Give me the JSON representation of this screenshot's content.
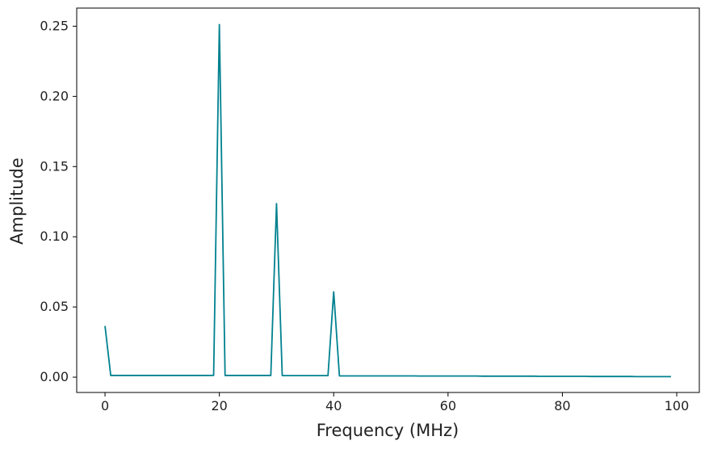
{
  "chart_data": {
    "type": "line",
    "title": "",
    "xlabel": "Frequency (MHz)",
    "ylabel": "Amplitude",
    "xlim": [
      -4.95,
      103.95
    ],
    "ylim": [
      -0.0109,
      0.2629
    ],
    "xticks": [
      0,
      20,
      40,
      60,
      80,
      100
    ],
    "xtick_labels": [
      "0",
      "20",
      "40",
      "60",
      "80",
      "100"
    ],
    "yticks": [
      0.0,
      0.05,
      0.1,
      0.15,
      0.2,
      0.25
    ],
    "ytick_labels": [
      "0.00",
      "0.05",
      "0.10",
      "0.15",
      "0.20",
      "0.25"
    ],
    "grid": false,
    "legend": "none",
    "series": [
      {
        "color": "#00818f",
        "x": [
          0,
          1,
          2,
          3,
          4,
          5,
          6,
          7,
          8,
          9,
          10,
          11,
          12,
          13,
          14,
          15,
          16,
          17,
          18,
          19,
          20,
          21,
          22,
          23,
          24,
          25,
          26,
          27,
          28,
          29,
          30,
          31,
          32,
          33,
          34,
          35,
          36,
          37,
          38,
          39,
          40,
          41,
          42,
          43,
          44,
          45,
          46,
          47,
          48,
          49,
          50,
          51,
          52,
          53,
          54,
          55,
          56,
          57,
          58,
          59,
          60,
          61,
          62,
          63,
          64,
          65,
          66,
          67,
          68,
          69,
          70,
          71,
          72,
          73,
          74,
          75,
          76,
          77,
          78,
          79,
          80,
          81,
          82,
          83,
          84,
          85,
          86,
          87,
          88,
          89,
          90,
          91,
          92,
          93,
          94,
          95,
          96,
          97,
          98,
          99
        ],
        "y": [
          0.0365,
          0.0012,
          0.0012,
          0.0012,
          0.0012,
          0.0012,
          0.0012,
          0.0012,
          0.0012,
          0.0012,
          0.0012,
          0.0012,
          0.0012,
          0.0012,
          0.0012,
          0.0012,
          0.0012,
          0.0012,
          0.0012,
          0.0013,
          0.2512,
          0.0012,
          0.0012,
          0.0012,
          0.0012,
          0.0012,
          0.0012,
          0.0012,
          0.0012,
          0.0012,
          0.1236,
          0.0011,
          0.0011,
          0.0011,
          0.0011,
          0.0011,
          0.0011,
          0.0011,
          0.0011,
          0.0011,
          0.0608,
          0.0009,
          0.0009,
          0.0009,
          0.0009,
          0.0009,
          0.0009,
          0.0009,
          0.0009,
          0.0009,
          0.0009,
          0.0009,
          0.0009,
          0.0009,
          0.0009,
          0.0008,
          0.0008,
          0.0008,
          0.0008,
          0.0008,
          0.0008,
          0.0008,
          0.0008,
          0.0008,
          0.0008,
          0.0008,
          0.0007,
          0.0007,
          0.0007,
          0.0007,
          0.0007,
          0.0007,
          0.0007,
          0.0007,
          0.0007,
          0.0007,
          0.0006,
          0.0006,
          0.0006,
          0.0006,
          0.0006,
          0.0006,
          0.0006,
          0.0006,
          0.0006,
          0.0005,
          0.0005,
          0.0005,
          0.0005,
          0.0005,
          0.0005,
          0.0005,
          0.0005,
          0.0004,
          0.0004,
          0.0004,
          0.0004,
          0.0004,
          0.0004,
          0.0004
        ]
      }
    ]
  }
}
